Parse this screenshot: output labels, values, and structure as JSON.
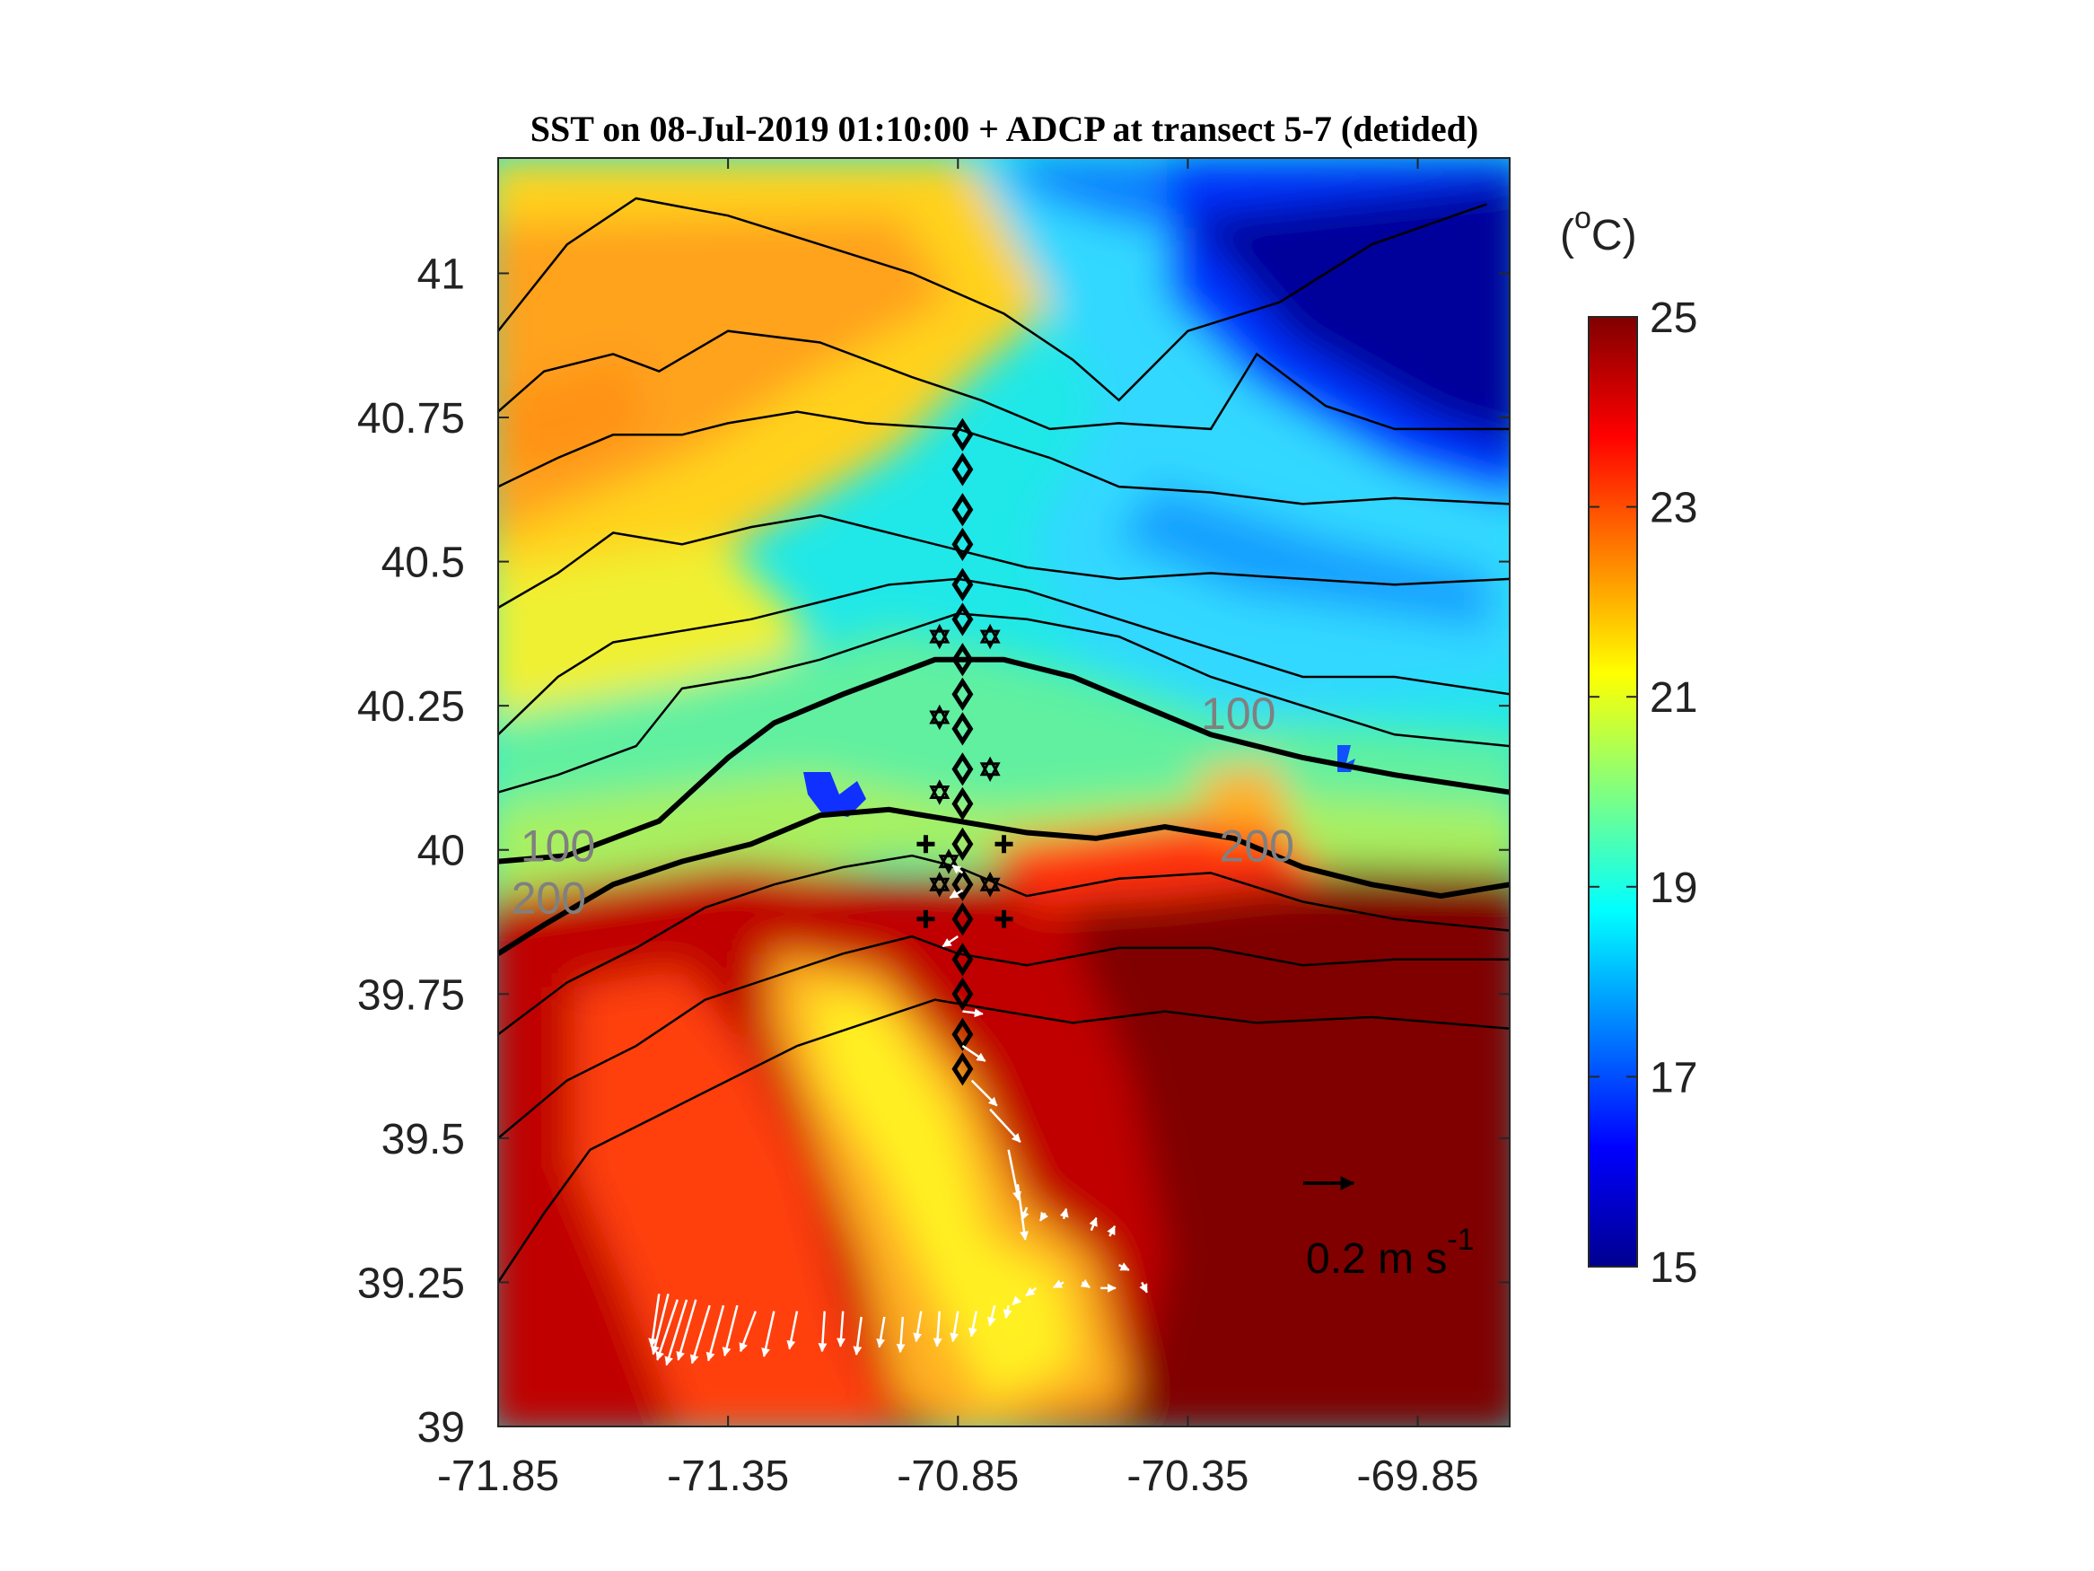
{
  "chart_data": {
    "type": "heatmap",
    "title": "SST on 08-Jul-2019 01:10:00 + ADCP at transect 5-7 (detided)",
    "xlabel": "",
    "ylabel": "",
    "xlim": [
      -71.85,
      -69.65
    ],
    "ylim": [
      39.0,
      41.2
    ],
    "xticks": [
      -71.85,
      -71.35,
      -70.85,
      -70.35,
      -69.85
    ],
    "xtick_labels": [
      "-71.85",
      "-71.35",
      "-70.85",
      "-70.35",
      "-69.85"
    ],
    "yticks": [
      39,
      39.25,
      39.5,
      39.75,
      40,
      40.25,
      40.5,
      40.75,
      41
    ],
    "ytick_labels": [
      "39",
      "39.25",
      "39.5",
      "39.75",
      "40",
      "40.25",
      "40.5",
      "40.75",
      "41"
    ],
    "colorbar": {
      "label": "(°C)",
      "range": [
        15,
        25
      ],
      "ticks": [
        "15",
        "17",
        "19",
        "21",
        "23",
        "25"
      ],
      "colormap": "jet",
      "stops": [
        "#00008f",
        "#0000ff",
        "#0080ff",
        "#00ffff",
        "#80ff80",
        "#ffff00",
        "#ff8000",
        "#ff0000",
        "#800000"
      ]
    },
    "isobath_labels": [
      {
        "text": "100",
        "lon": -71.72,
        "lat": 39.98
      },
      {
        "text": "200",
        "lon": -71.74,
        "lat": 39.89
      },
      {
        "text": "100",
        "lon": -70.24,
        "lat": 40.21
      },
      {
        "text": "200",
        "lon": -70.2,
        "lat": 39.98
      }
    ],
    "isobaths": {
      "100": [
        [
          -71.85,
          39.98
        ],
        [
          -71.7,
          39.99
        ],
        [
          -71.5,
          40.05
        ],
        [
          -71.35,
          40.16
        ],
        [
          -71.25,
          40.22
        ],
        [
          -71.1,
          40.27
        ],
        [
          -70.9,
          40.33
        ],
        [
          -70.75,
          40.33
        ],
        [
          -70.6,
          40.3
        ],
        [
          -70.45,
          40.25
        ],
        [
          -70.3,
          40.2
        ],
        [
          -70.1,
          40.16
        ],
        [
          -69.9,
          40.13
        ],
        [
          -69.65,
          40.1
        ]
      ],
      "200": [
        [
          -71.85,
          39.82
        ],
        [
          -71.75,
          39.87
        ],
        [
          -71.6,
          39.94
        ],
        [
          -71.45,
          39.98
        ],
        [
          -71.3,
          40.01
        ],
        [
          -71.15,
          40.06
        ],
        [
          -71.0,
          40.07
        ],
        [
          -70.85,
          40.05
        ],
        [
          -70.7,
          40.03
        ],
        [
          -70.55,
          40.02
        ],
        [
          -70.4,
          40.04
        ],
        [
          -70.25,
          40.02
        ],
        [
          -70.1,
          39.97
        ],
        [
          -69.95,
          39.94
        ],
        [
          -69.8,
          39.92
        ],
        [
          -69.65,
          39.94
        ]
      ]
    },
    "thin_contours": [
      [
        [
          -71.85,
          40.9
        ],
        [
          -71.7,
          41.05
        ],
        [
          -71.55,
          41.13
        ],
        [
          -71.35,
          41.1
        ],
        [
          -71.15,
          41.05
        ],
        [
          -70.95,
          41.0
        ],
        [
          -70.75,
          40.93
        ],
        [
          -70.6,
          40.85
        ],
        [
          -70.5,
          40.78
        ],
        [
          -70.35,
          40.9
        ],
        [
          -70.15,
          40.95
        ],
        [
          -69.95,
          41.05
        ],
        [
          -69.7,
          41.12
        ]
      ],
      [
        [
          -71.85,
          40.76
        ],
        [
          -71.75,
          40.83
        ],
        [
          -71.6,
          40.86
        ],
        [
          -71.5,
          40.83
        ],
        [
          -71.35,
          40.9
        ],
        [
          -71.15,
          40.88
        ],
        [
          -70.95,
          40.82
        ],
        [
          -70.8,
          40.78
        ],
        [
          -70.65,
          40.73
        ],
        [
          -70.5,
          40.74
        ],
        [
          -70.3,
          40.73
        ],
        [
          -70.2,
          40.86
        ],
        [
          -70.05,
          40.77
        ],
        [
          -69.9,
          40.73
        ],
        [
          -69.65,
          40.73
        ]
      ],
      [
        [
          -71.85,
          40.63
        ],
        [
          -71.72,
          40.68
        ],
        [
          -71.6,
          40.72
        ],
        [
          -71.45,
          40.72
        ],
        [
          -71.35,
          40.74
        ],
        [
          -71.2,
          40.76
        ],
        [
          -71.05,
          40.74
        ],
        [
          -70.85,
          40.73
        ],
        [
          -70.65,
          40.68
        ],
        [
          -70.5,
          40.63
        ],
        [
          -70.3,
          40.62
        ],
        [
          -70.1,
          40.6
        ],
        [
          -69.9,
          40.61
        ],
        [
          -69.65,
          40.6
        ]
      ],
      [
        [
          -71.85,
          40.42
        ],
        [
          -71.72,
          40.48
        ],
        [
          -71.6,
          40.55
        ],
        [
          -71.45,
          40.53
        ],
        [
          -71.3,
          40.56
        ],
        [
          -71.15,
          40.58
        ],
        [
          -71.0,
          40.55
        ],
        [
          -70.85,
          40.52
        ],
        [
          -70.7,
          40.49
        ],
        [
          -70.5,
          40.47
        ],
        [
          -70.3,
          40.48
        ],
        [
          -70.1,
          40.47
        ],
        [
          -69.9,
          40.46
        ],
        [
          -69.65,
          40.47
        ]
      ],
      [
        [
          -71.85,
          40.2
        ],
        [
          -71.72,
          40.3
        ],
        [
          -71.6,
          40.36
        ],
        [
          -71.45,
          40.38
        ],
        [
          -71.3,
          40.4
        ],
        [
          -71.15,
          40.43
        ],
        [
          -71.0,
          40.46
        ],
        [
          -70.85,
          40.47
        ],
        [
          -70.7,
          40.45
        ],
        [
          -70.5,
          40.4
        ],
        [
          -70.3,
          40.35
        ],
        [
          -70.1,
          40.3
        ],
        [
          -69.9,
          40.3
        ],
        [
          -69.65,
          40.27
        ]
      ],
      [
        [
          -71.85,
          40.1
        ],
        [
          -71.72,
          40.13
        ],
        [
          -71.55,
          40.18
        ],
        [
          -71.45,
          40.28
        ],
        [
          -71.3,
          40.3
        ],
        [
          -71.15,
          40.33
        ],
        [
          -71.0,
          40.37
        ],
        [
          -70.85,
          40.41
        ],
        [
          -70.7,
          40.4
        ],
        [
          -70.5,
          40.37
        ],
        [
          -70.3,
          40.3
        ],
        [
          -70.1,
          40.25
        ],
        [
          -69.9,
          40.2
        ],
        [
          -69.65,
          40.18
        ]
      ],
      [
        [
          -71.85,
          39.68
        ],
        [
          -71.7,
          39.77
        ],
        [
          -71.55,
          39.83
        ],
        [
          -71.4,
          39.9
        ],
        [
          -71.25,
          39.94
        ],
        [
          -71.1,
          39.97
        ],
        [
          -70.95,
          39.99
        ],
        [
          -70.85,
          39.97
        ],
        [
          -70.7,
          39.92
        ],
        [
          -70.5,
          39.95
        ],
        [
          -70.3,
          39.96
        ],
        [
          -70.1,
          39.91
        ],
        [
          -69.9,
          39.88
        ],
        [
          -69.65,
          39.86
        ]
      ],
      [
        [
          -71.85,
          39.5
        ],
        [
          -71.7,
          39.6
        ],
        [
          -71.55,
          39.66
        ],
        [
          -71.4,
          39.74
        ],
        [
          -71.25,
          39.78
        ],
        [
          -71.1,
          39.82
        ],
        [
          -70.95,
          39.85
        ],
        [
          -70.85,
          39.82
        ],
        [
          -70.7,
          39.8
        ],
        [
          -70.5,
          39.83
        ],
        [
          -70.3,
          39.83
        ],
        [
          -70.1,
          39.8
        ],
        [
          -69.9,
          39.81
        ],
        [
          -69.65,
          39.81
        ]
      ],
      [
        [
          -71.85,
          39.25
        ],
        [
          -71.75,
          39.37
        ],
        [
          -71.65,
          39.48
        ],
        [
          -71.5,
          39.54
        ],
        [
          -71.35,
          39.6
        ],
        [
          -71.2,
          39.66
        ],
        [
          -71.05,
          39.7
        ],
        [
          -70.9,
          39.74
        ],
        [
          -70.75,
          39.72
        ],
        [
          -70.6,
          39.7
        ],
        [
          -70.4,
          39.72
        ],
        [
          -70.2,
          39.7
        ],
        [
          -69.95,
          39.71
        ],
        [
          -69.65,
          39.69
        ]
      ]
    ],
    "stations": {
      "diamonds": [
        [
          -70.84,
          40.72
        ],
        [
          -70.84,
          40.66
        ],
        [
          -70.84,
          40.59
        ],
        [
          -70.84,
          40.53
        ],
        [
          -70.84,
          40.46
        ],
        [
          -70.84,
          40.4
        ],
        [
          -70.84,
          40.33
        ],
        [
          -70.84,
          40.27
        ],
        [
          -70.84,
          40.21
        ],
        [
          -70.84,
          40.14
        ],
        [
          -70.84,
          40.08
        ],
        [
          -70.84,
          40.01
        ],
        [
          -70.84,
          39.94
        ],
        [
          -70.84,
          39.88
        ],
        [
          -70.84,
          39.81
        ],
        [
          -70.84,
          39.75
        ],
        [
          -70.84,
          39.68
        ],
        [
          -70.84,
          39.62
        ]
      ],
      "stars": [
        [
          -70.89,
          40.37
        ],
        [
          -70.78,
          40.37
        ],
        [
          -70.89,
          40.23
        ],
        [
          -70.78,
          40.14
        ],
        [
          -70.89,
          40.1
        ],
        [
          -70.89,
          39.94
        ],
        [
          -70.78,
          39.94
        ],
        [
          -70.87,
          39.98
        ]
      ],
      "plus": [
        [
          -70.92,
          40.01
        ],
        [
          -70.75,
          40.01
        ],
        [
          -70.92,
          39.88
        ],
        [
          -70.75,
          39.88
        ]
      ]
    },
    "adcp_vectors": [
      {
        "lon": -70.84,
        "lat": 39.96,
        "u": -0.04,
        "v": 0.03
      },
      {
        "lon": -70.84,
        "lat": 39.93,
        "u": -0.05,
        "v": -0.03
      },
      {
        "lon": -70.85,
        "lat": 39.85,
        "u": -0.06,
        "v": -0.04
      },
      {
        "lon": -70.84,
        "lat": 39.72,
        "u": 0.08,
        "v": -0.01
      },
      {
        "lon": -70.84,
        "lat": 39.66,
        "u": 0.09,
        "v": -0.06
      },
      {
        "lon": -70.82,
        "lat": 39.6,
        "u": 0.1,
        "v": -0.1
      },
      {
        "lon": -70.78,
        "lat": 39.55,
        "u": 0.12,
        "v": -0.13
      },
      {
        "lon": -70.74,
        "lat": 39.48,
        "u": 0.04,
        "v": -0.2
      },
      {
        "lon": -70.72,
        "lat": 39.42,
        "u": 0.03,
        "v": -0.22
      },
      {
        "lon": -70.7,
        "lat": 39.38,
        "u": -0.02,
        "v": -0.05
      },
      {
        "lon": -70.66,
        "lat": 39.37,
        "u": -0.02,
        "v": -0.03
      },
      {
        "lon": -70.62,
        "lat": 39.36,
        "u": 0.01,
        "v": 0.04
      },
      {
        "lon": -70.56,
        "lat": 39.34,
        "u": 0.02,
        "v": 0.05
      },
      {
        "lon": -70.52,
        "lat": 39.33,
        "u": 0.02,
        "v": 0.04
      },
      {
        "lon": -70.5,
        "lat": 39.28,
        "u": 0.04,
        "v": -0.02
      },
      {
        "lon": -70.54,
        "lat": 39.24,
        "u": 0.06,
        "v": 0.0
      },
      {
        "lon": -70.58,
        "lat": 39.25,
        "u": 0.03,
        "v": -0.02
      },
      {
        "lon": -70.62,
        "lat": 39.25,
        "u": -0.04,
        "v": -0.02
      },
      {
        "lon": -70.68,
        "lat": 39.24,
        "u": -0.04,
        "v": -0.03
      },
      {
        "lon": -70.72,
        "lat": 39.22,
        "u": -0.02,
        "v": -0.02
      },
      {
        "lon": -70.45,
        "lat": 39.25,
        "u": 0.02,
        "v": -0.04
      },
      {
        "lon": -71.5,
        "lat": 39.23,
        "u": -0.03,
        "v": -0.21
      },
      {
        "lon": -71.48,
        "lat": 39.23,
        "u": -0.06,
        "v": -0.24
      },
      {
        "lon": -71.46,
        "lat": 39.22,
        "u": -0.08,
        "v": -0.24
      },
      {
        "lon": -71.44,
        "lat": 39.22,
        "u": -0.08,
        "v": -0.26
      },
      {
        "lon": -71.42,
        "lat": 39.22,
        "u": -0.07,
        "v": -0.24
      },
      {
        "lon": -71.39,
        "lat": 39.21,
        "u": -0.07,
        "v": -0.23
      },
      {
        "lon": -71.36,
        "lat": 39.21,
        "u": -0.06,
        "v": -0.22
      },
      {
        "lon": -71.33,
        "lat": 39.21,
        "u": -0.05,
        "v": -0.2
      },
      {
        "lon": -71.29,
        "lat": 39.2,
        "u": -0.06,
        "v": -0.16
      },
      {
        "lon": -71.25,
        "lat": 39.2,
        "u": -0.04,
        "v": -0.18
      },
      {
        "lon": -71.2,
        "lat": 39.2,
        "u": -0.03,
        "v": -0.15
      },
      {
        "lon": -71.14,
        "lat": 39.2,
        "u": -0.01,
        "v": -0.16
      },
      {
        "lon": -71.1,
        "lat": 39.2,
        "u": -0.01,
        "v": -0.14
      },
      {
        "lon": -71.06,
        "lat": 39.19,
        "u": -0.02,
        "v": -0.15
      },
      {
        "lon": -71.01,
        "lat": 39.19,
        "u": -0.02,
        "v": -0.12
      },
      {
        "lon": -70.97,
        "lat": 39.19,
        "u": -0.01,
        "v": -0.14
      },
      {
        "lon": -70.93,
        "lat": 39.2,
        "u": -0.02,
        "v": -0.12
      },
      {
        "lon": -70.89,
        "lat": 39.2,
        "u": -0.01,
        "v": -0.14
      },
      {
        "lon": -70.85,
        "lat": 39.2,
        "u": -0.02,
        "v": -0.12
      },
      {
        "lon": -70.81,
        "lat": 39.2,
        "u": -0.02,
        "v": -0.1
      },
      {
        "lon": -70.77,
        "lat": 39.21,
        "u": -0.02,
        "v": -0.08
      },
      {
        "lon": -70.74,
        "lat": 39.21,
        "u": -0.01,
        "v": -0.05
      }
    ],
    "scale_vector": {
      "u": 0.2,
      "label_prefix": "0.2 m s",
      "label_sup": "-1"
    }
  }
}
